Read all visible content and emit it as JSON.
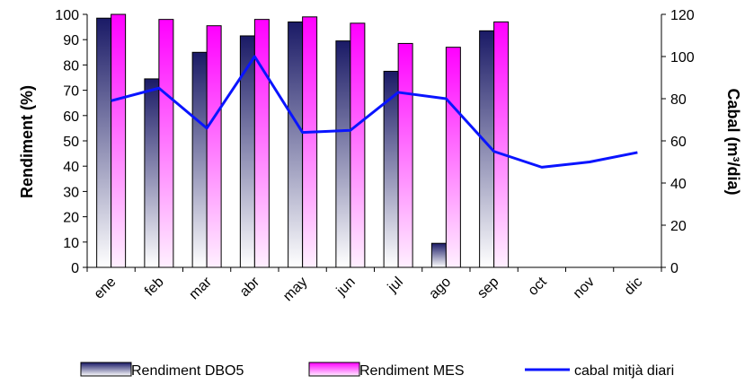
{
  "chart_data": {
    "type": "bar",
    "categories": [
      "ene",
      "feb",
      "mar",
      "abr",
      "may",
      "jun",
      "jul",
      "ago",
      "sep",
      "oct",
      "nov",
      "dic"
    ],
    "series": [
      {
        "name": "Rendiment DBO5",
        "type": "bar",
        "axis": "left",
        "values": [
          98.5,
          74.5,
          85,
          91.5,
          97,
          89.5,
          77.5,
          9.5,
          93.5,
          null,
          null,
          null
        ]
      },
      {
        "name": "Rendiment MES",
        "type": "bar",
        "axis": "left",
        "values": [
          100,
          98,
          95.5,
          98,
          99,
          96.5,
          88.5,
          87,
          97,
          null,
          null,
          null
        ]
      },
      {
        "name": "cabal mitjà diari",
        "type": "line",
        "axis": "right",
        "values": [
          79,
          85,
          66,
          100,
          64,
          65,
          83,
          80,
          55,
          47.5,
          50,
          54.5
        ]
      }
    ],
    "ylabel": "Rendiment (%)",
    "y2label": "Cabal (m³/dia)",
    "ylim": [
      0,
      100
    ],
    "y2lim": [
      0,
      120
    ],
    "yticks": [
      "0",
      "10",
      "20",
      "30",
      "40",
      "50",
      "60",
      "70",
      "80",
      "90",
      "100"
    ],
    "y2ticks": [
      "0",
      "20",
      "40",
      "60",
      "80",
      "100",
      "120"
    ],
    "grid": false,
    "legend_position": "bottom",
    "colors": {
      "dbo5_dark": "#1a1a66",
      "dbo5_light": "#ffffff",
      "mes_strong": "#ff00ff",
      "mes_light": "#fff0ff",
      "line": "#0a14ff"
    }
  }
}
